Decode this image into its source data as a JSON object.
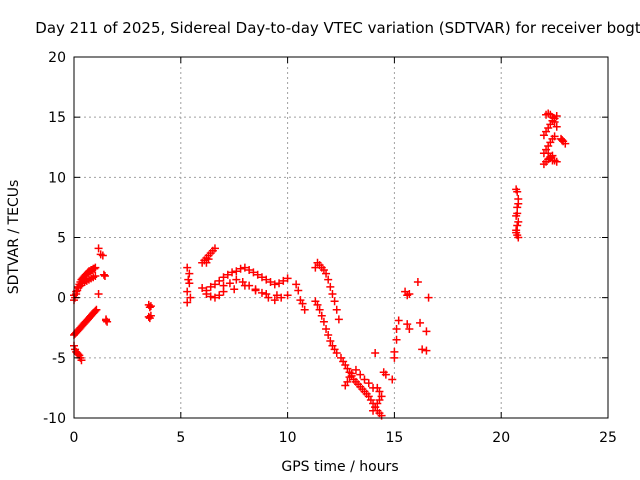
{
  "chart_data": {
    "type": "scatter",
    "title": "Day 211 of 2025, Sidereal Day-to-day VTEC variation (SDTVAR) for receiver bogt",
    "xlabel": "GPS time / hours",
    "ylabel": "SDTVAR / TECUs",
    "xlim": [
      0,
      25
    ],
    "ylim": [
      -10,
      20
    ],
    "xticks": [
      0,
      5,
      10,
      15,
      20,
      25
    ],
    "xtick_labels": [
      "0",
      "5",
      "10",
      "15",
      "20",
      "25"
    ],
    "yticks": [
      -10,
      -5,
      0,
      5,
      10,
      15,
      20
    ],
    "ytick_labels": [
      "-10",
      "-5",
      "0",
      "5",
      "10",
      "15",
      "20"
    ],
    "grid": true,
    "marker": "+",
    "color": "#ff0000",
    "series": [
      {
        "name": "SDTVAR",
        "x": [
          0.0,
          0.05,
          0.1,
          0.15,
          0.2,
          0.25,
          0.3,
          0.35,
          0.4,
          0.45,
          0.5,
          0.55,
          0.6,
          0.65,
          0.7,
          0.75,
          0.8,
          0.85,
          0.9,
          0.95,
          1.0,
          0.0,
          0.05,
          0.1,
          0.15,
          0.2,
          0.25,
          0.3,
          0.35,
          0.4,
          0.45,
          0.5,
          0.55,
          0.6,
          0.65,
          0.7,
          0.75,
          0.8,
          0.85,
          0.9,
          0.95,
          1.0,
          1.05,
          0.0,
          0.1,
          0.2,
          0.3,
          0.4,
          0.5,
          0.6,
          0.7,
          0.8,
          0.9,
          1.0,
          0.0,
          0.05,
          0.1,
          0.15,
          0.2,
          0.25,
          0.3,
          0.35,
          1.15,
          1.25,
          1.35,
          1.4,
          1.45,
          1.5,
          1.55,
          1.15,
          1.5,
          3.5,
          3.55,
          3.6,
          3.5,
          3.55,
          3.6,
          5.3,
          5.3,
          5.4,
          5.3,
          5.4,
          5.35,
          5.45,
          6.0,
          6.1,
          6.2,
          6.3,
          6.4,
          6.5,
          6.6,
          6.2,
          6.3,
          6.0,
          6.2,
          6.4,
          6.6,
          6.8,
          7.0,
          7.2,
          7.4,
          7.6,
          7.8,
          8.0,
          8.2,
          8.4,
          8.6,
          8.8,
          9.0,
          9.2,
          9.4,
          9.6,
          9.8,
          10.0,
          6.2,
          6.4,
          6.6,
          6.8,
          7.0,
          7.5,
          8.0,
          8.5,
          9.0,
          9.5,
          7.0,
          7.3,
          7.6,
          7.9,
          8.2,
          8.5,
          8.8,
          9.1,
          9.4,
          9.7,
          10.0,
          10.4,
          10.5,
          10.6,
          10.7,
          10.8,
          11.3,
          11.4,
          11.5,
          11.6,
          11.7,
          11.8,
          11.9,
          12.0,
          12.1,
          12.2,
          12.3,
          12.4,
          11.3,
          11.4,
          11.5,
          11.6,
          11.7,
          11.8,
          11.9,
          12.0,
          12.1,
          12.2,
          12.3,
          12.5,
          12.6,
          12.7,
          12.8,
          12.9,
          13.0,
          13.1,
          13.2,
          13.3,
          13.4,
          13.5,
          13.6,
          13.7,
          13.8,
          13.9,
          14.0,
          14.1,
          14.2,
          14.3,
          14.4,
          12.7,
          12.8,
          12.9,
          13.0,
          13.2,
          13.4,
          13.6,
          13.8,
          14.0,
          14.1,
          14.2,
          14.3,
          14.4,
          14.0,
          14.1,
          14.2,
          14.3,
          14.5,
          14.6,
          14.9,
          15.0,
          15.0,
          15.1,
          15.1,
          15.2,
          15.5,
          15.6,
          15.7,
          15.6,
          15.7,
          16.1,
          16.2,
          16.3,
          16.5,
          16.6,
          16.5,
          20.7,
          20.75,
          20.8,
          20.75,
          20.7,
          20.8,
          20.75,
          20.7,
          20.75,
          20.8,
          20.8,
          20.75,
          20.7,
          22.0,
          22.1,
          22.2,
          22.3,
          22.4,
          22.0,
          22.1,
          22.2,
          22.3,
          22.4,
          22.5,
          22.0,
          22.1,
          22.2,
          22.3,
          22.4,
          22.5,
          22.6,
          22.1,
          22.2,
          22.3,
          22.4,
          22.5,
          22.6,
          22.2,
          22.3,
          22.4,
          22.5,
          22.6,
          22.8,
          22.9,
          23.0,
          22.85
        ],
        "y": [
          -0.2,
          0.0,
          0.3,
          0.6,
          0.9,
          1.1,
          1.3,
          1.5,
          1.6,
          1.7,
          1.8,
          1.9,
          2.0,
          2.1,
          2.2,
          2.2,
          2.3,
          2.3,
          2.4,
          2.4,
          2.5,
          -3.1,
          -3.0,
          -2.9,
          -2.8,
          -2.7,
          -2.6,
          -2.5,
          -2.4,
          -2.3,
          -2.2,
          -2.1,
          -2.0,
          -1.9,
          -1.8,
          -1.7,
          -1.6,
          -1.5,
          -1.4,
          -1.3,
          -1.2,
          -1.1,
          -1.0,
          0.2,
          0.5,
          0.8,
          1.0,
          1.2,
          1.3,
          1.4,
          1.5,
          1.6,
          1.7,
          1.8,
          -4.0,
          -4.3,
          -4.5,
          -4.6,
          -4.7,
          -4.8,
          -5.0,
          -5.2,
          4.1,
          3.6,
          3.5,
          1.9,
          1.8,
          -1.9,
          -2.0,
          0.3,
          -1.8,
          -0.6,
          -0.8,
          -0.7,
          -1.6,
          -1.7,
          -1.5,
          2.5,
          0.5,
          1.2,
          -0.4,
          2.0,
          1.5,
          0.0,
          2.9,
          3.1,
          3.3,
          3.5,
          3.7,
          3.9,
          4.1,
          2.9,
          3.2,
          0.8,
          0.6,
          0.9,
          1.1,
          1.4,
          1.7,
          1.9,
          2.1,
          2.2,
          2.4,
          2.5,
          2.3,
          2.1,
          1.9,
          1.7,
          1.5,
          1.3,
          1.1,
          1.2,
          1.4,
          1.6,
          0.3,
          0.1,
          0.0,
          0.2,
          0.5,
          0.7,
          1.0,
          0.6,
          0.3,
          0.2,
          1.0,
          1.2,
          1.5,
          1.3,
          1.0,
          0.7,
          0.4,
          0.0,
          -0.2,
          0.0,
          0.2,
          1.1,
          0.6,
          -0.2,
          -0.5,
          -1.0,
          2.5,
          2.9,
          2.7,
          2.5,
          2.3,
          2.0,
          1.5,
          0.9,
          0.3,
          -0.3,
          -1.0,
          -1.8,
          -0.3,
          -0.6,
          -1.0,
          -1.5,
          -2.0,
          -2.6,
          -3.1,
          -3.6,
          -4.0,
          -4.3,
          -4.6,
          -5.0,
          -5.3,
          -5.6,
          -5.9,
          -6.2,
          -6.5,
          -6.8,
          -7.0,
          -7.2,
          -7.4,
          -7.6,
          -7.8,
          -8.0,
          -8.2,
          -8.5,
          -8.8,
          -9.1,
          -9.4,
          -9.6,
          -9.8,
          -7.3,
          -7.0,
          -6.6,
          -6.3,
          -6.0,
          -6.4,
          -6.8,
          -7.1,
          -7.5,
          -4.6,
          -7.5,
          -7.8,
          -8.2,
          -9.4,
          -9.1,
          -8.8,
          -8.5,
          -6.2,
          -6.4,
          -6.8,
          -5.0,
          -4.5,
          -3.5,
          -2.6,
          -1.9,
          0.5,
          0.2,
          0.3,
          -2.2,
          -2.6,
          1.3,
          -2.1,
          -4.3,
          -4.4,
          0.0,
          -2.8,
          9.0,
          8.8,
          8.2,
          7.5,
          6.8,
          6.3,
          6.0,
          5.6,
          5.2,
          5.0,
          7.8,
          7.0,
          5.4,
          11.1,
          11.3,
          11.5,
          11.6,
          11.8,
          12.0,
          12.3,
          12.6,
          12.9,
          13.2,
          13.4,
          13.5,
          13.8,
          14.1,
          14.4,
          14.7,
          14.9,
          15.1,
          15.2,
          15.3,
          15.2,
          15.0,
          14.6,
          14.2,
          12.0,
          11.7,
          11.4,
          11.4,
          11.3,
          13.2,
          13.0,
          12.8,
          13.1
        ]
      }
    ]
  }
}
